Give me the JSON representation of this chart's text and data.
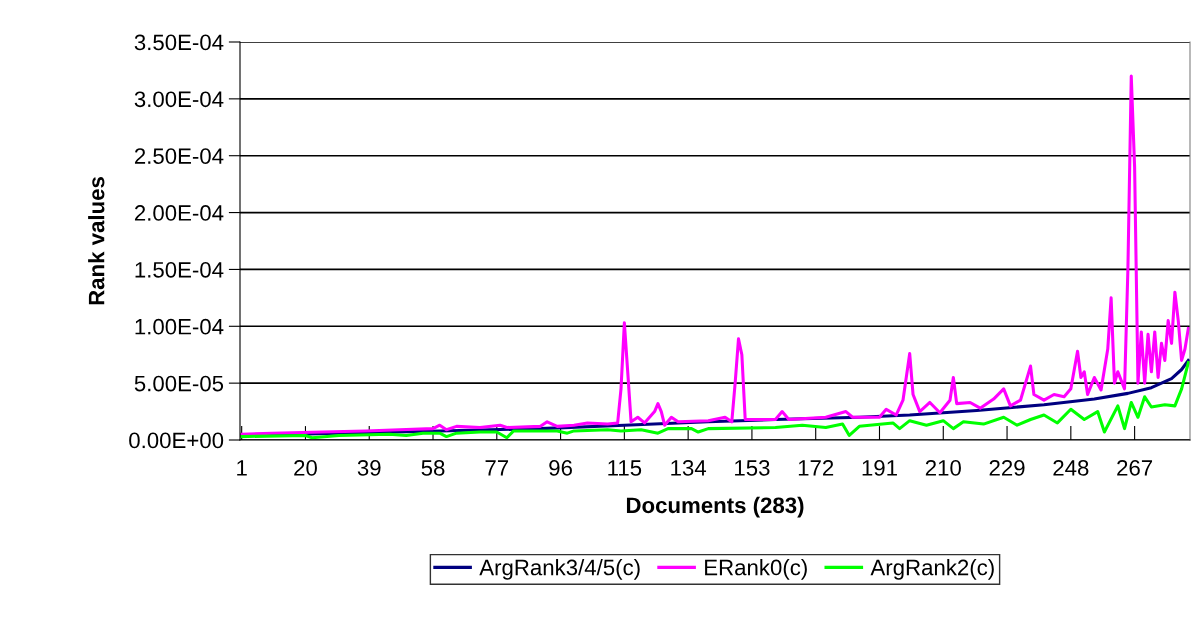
{
  "chart_data": {
    "type": "line",
    "xlabel": "Documents (283)",
    "ylabel": "Rank values",
    "xlim": [
      0.5,
      283.5
    ],
    "xticks": [
      1,
      20,
      39,
      58,
      77,
      96,
      115,
      134,
      153,
      172,
      191,
      210,
      229,
      248,
      267
    ],
    "ylim": [
      0,
      0.00035
    ],
    "yticks": [
      {
        "value": 0,
        "label": "0.00E+00"
      },
      {
        "value": 5e-05,
        "label": "5.00E-05"
      },
      {
        "value": 0.0001,
        "label": "1.00E-04"
      },
      {
        "value": 0.00015,
        "label": "1.50E-04"
      },
      {
        "value": 0.0002,
        "label": "2.00E-04"
      },
      {
        "value": 0.00025,
        "label": "2.50E-04"
      },
      {
        "value": 0.0003,
        "label": "3.00E-04"
      },
      {
        "value": 0.00035,
        "label": "3.50E-04"
      }
    ],
    "grid": "y",
    "legend": "bottom",
    "marker": "none",
    "line_style": "solid",
    "series": [
      {
        "name": "ArgRank3/4/5(c)",
        "color": "#000080",
        "x": [
          1,
          30,
          60,
          90,
          115,
          140,
          160,
          185,
          200,
          220,
          240,
          255,
          265,
          272,
          278,
          281,
          283
        ],
        "values": [
          4e-06,
          6e-06,
          8e-06,
          1e-05,
          1.3e-05,
          1.6e-05,
          1.8e-05,
          2e-05,
          2.2e-05,
          2.6e-05,
          3.1e-05,
          3.6e-05,
          4.1e-05,
          4.6e-05,
          5.4e-05,
          6.2e-05,
          7e-05
        ]
      },
      {
        "name": "ERank0(c)",
        "color": "#ff00ff",
        "x": [
          1,
          10,
          25,
          38,
          48,
          58,
          60,
          62,
          65,
          72,
          78,
          80,
          90,
          92,
          95,
          100,
          104,
          110,
          113,
          114,
          115,
          116,
          117,
          119,
          121,
          124,
          125,
          126,
          127,
          129,
          131,
          140,
          145,
          147,
          148,
          149,
          150,
          151,
          160,
          162,
          164,
          175,
          181,
          183,
          191,
          193,
          196,
          198,
          200,
          201,
          203,
          206,
          209,
          212,
          213,
          214,
          218,
          221,
          225,
          228,
          230,
          233,
          236,
          237,
          240,
          243,
          246,
          248,
          250,
          251,
          252,
          253,
          255,
          257,
          259,
          260,
          261,
          262,
          264,
          265,
          266,
          267,
          268,
          269,
          270,
          271,
          272,
          273,
          274,
          275,
          276,
          277,
          278,
          279,
          280,
          281,
          282,
          283
        ],
        "values": [
          5e-06,
          6e-06,
          7e-06,
          8e-06,
          9e-06,
          1e-05,
          1.3e-05,
          9e-06,
          1.2e-05,
          1.1e-05,
          1.3e-05,
          1.1e-05,
          1.2e-05,
          1.6e-05,
          1.2e-05,
          1.3e-05,
          1.5e-05,
          1.4e-05,
          1.5e-05,
          4.5e-05,
          0.000103,
          6e-05,
          1.6e-05,
          2e-05,
          1.5e-05,
          2.5e-05,
          3.2e-05,
          2.5e-05,
          1.3e-05,
          2e-05,
          1.6e-05,
          1.7e-05,
          2e-05,
          1.6e-05,
          5e-05,
          8.9e-05,
          7.5e-05,
          1.8e-05,
          1.8e-05,
          2.5e-05,
          1.8e-05,
          2e-05,
          2.5e-05,
          2e-05,
          2e-05,
          2.7e-05,
          2.2e-05,
          3.5e-05,
          7.6e-05,
          4e-05,
          2.5e-05,
          3.3e-05,
          2.4e-05,
          3.5e-05,
          5.5e-05,
          3.2e-05,
          3.3e-05,
          2.8e-05,
          3.6e-05,
          4.5e-05,
          3e-05,
          3.5e-05,
          6.5e-05,
          4e-05,
          3.5e-05,
          4e-05,
          3.8e-05,
          4.5e-05,
          7.8e-05,
          5.5e-05,
          6e-05,
          4e-05,
          5.5e-05,
          4.4e-05,
          8e-05,
          0.000125,
          5e-05,
          6e-05,
          4.5e-05,
          0.00015,
          0.00032,
          0.00024,
          5e-05,
          9.5e-05,
          5e-05,
          9.3e-05,
          6e-05,
          9.5e-05,
          5.5e-05,
          8.5e-05,
          7e-05,
          0.000105,
          8.5e-05,
          0.00013,
          0.000105,
          7e-05,
          8e-05,
          9.8e-05
        ]
      },
      {
        "name": "ArgRank2(c)",
        "color": "#00ff00",
        "x": [
          1,
          20,
          22,
          30,
          45,
          50,
          55,
          60,
          62,
          65,
          72,
          77,
          80,
          82,
          95,
          98,
          100,
          110,
          114,
          120,
          125,
          128,
          135,
          137,
          140,
          160,
          168,
          175,
          180,
          182,
          185,
          195,
          197,
          200,
          205,
          210,
          213,
          216,
          222,
          228,
          232,
          236,
          240,
          244,
          248,
          252,
          256,
          258,
          262,
          264,
          266,
          268,
          270,
          272,
          276,
          279,
          281,
          283
        ],
        "values": [
          3e-06,
          4e-06,
          2e-06,
          4e-06,
          5e-06,
          4e-06,
          6e-06,
          6e-06,
          3e-06,
          6e-06,
          7e-06,
          7e-06,
          2e-06,
          8e-06,
          8e-06,
          6e-06,
          8e-06,
          9e-06,
          8e-06,
          9e-06,
          6e-06,
          1e-05,
          1e-05,
          7e-06,
          1e-05,
          1.1e-05,
          1.3e-05,
          1.1e-05,
          1.4e-05,
          4e-06,
          1.2e-05,
          1.5e-05,
          1e-05,
          1.7e-05,
          1.3e-05,
          1.7e-05,
          1e-05,
          1.6e-05,
          1.4e-05,
          2e-05,
          1.3e-05,
          1.8e-05,
          2.2e-05,
          1.5e-05,
          2.7e-05,
          1.8e-05,
          2.5e-05,
          7e-06,
          3e-05,
          1e-05,
          3.3e-05,
          2e-05,
          3.8e-05,
          2.9e-05,
          3.1e-05,
          3e-05,
          4.5e-05,
          6.8e-05
        ]
      }
    ]
  }
}
